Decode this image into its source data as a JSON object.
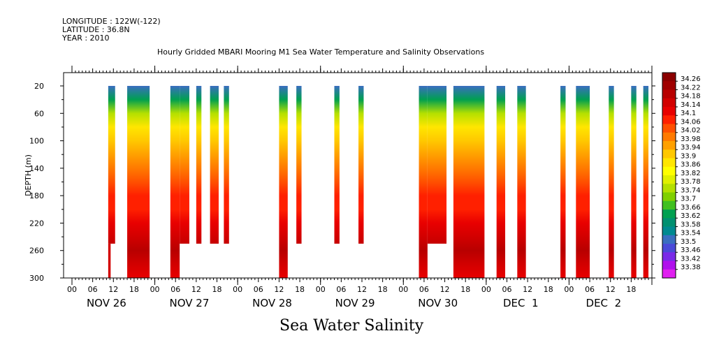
{
  "header": {
    "longitude": "LONGITUDE : 122W(-122)",
    "latitude": "LATITUDE : 36.8N",
    "year": "YEAR : 2010"
  },
  "title": "Hourly Gridded MBARI Mooring M1 Sea Water Temperature and Salinity Observations",
  "bottom_title": "Sea Water Salinity",
  "chart_data": {
    "type": "heatmap",
    "title": "Hourly Gridded MBARI Mooring M1 Sea Water Temperature and Salinity Observations",
    "variable": "Sea Water Salinity",
    "ylabel": "DEPTH (m)",
    "ylim": [
      300,
      0
    ],
    "yticks": [
      20,
      60,
      100,
      140,
      180,
      220,
      260,
      300
    ],
    "xlim_hours": [
      0,
      168
    ],
    "x_start": "NOV 26 2010 00:00",
    "hour_tick_labels": [
      "00",
      "06",
      "12",
      "18",
      "00",
      "06",
      "12",
      "18",
      "00",
      "06",
      "12",
      "18",
      "00",
      "06",
      "12",
      "18",
      "00",
      "06",
      "12",
      "18",
      "00",
      "06",
      "12",
      "18",
      "00",
      "06",
      "12",
      "18"
    ],
    "day_labels": [
      "NOV 26",
      "NOV 27",
      "NOV 28",
      "NOV 29",
      "NOV 30",
      "DEC  1",
      "DEC  2"
    ],
    "colorbar": {
      "levels": [
        "34.26",
        "34.22",
        "34.18",
        "34.14",
        "34.1",
        "34.06",
        "34.02",
        "33.98",
        "33.94",
        "33.9",
        "33.86",
        "33.82",
        "33.78",
        "33.74",
        "33.7",
        "33.66",
        "33.62",
        "33.58",
        "33.54",
        "33.5",
        "33.46",
        "33.42",
        "33.38"
      ],
      "colors": [
        "#8b0000",
        "#a00000",
        "#b80000",
        "#d20000",
        "#e80000",
        "#ff2000",
        "#ff5000",
        "#ff7a00",
        "#ffa000",
        "#ffc800",
        "#ffe600",
        "#ffff00",
        "#e0f000",
        "#b4e000",
        "#80d000",
        "#40c020",
        "#00a050",
        "#009070",
        "#008a90",
        "#3a6ec0",
        "#4a4ad8",
        "#7a2ae8",
        "#b010ec",
        "#e020f0"
      ]
    },
    "profile": [
      {
        "depth": 20,
        "value": 33.55
      },
      {
        "depth": 40,
        "value": 33.66
      },
      {
        "depth": 60,
        "value": 33.78
      },
      {
        "depth": 80,
        "value": 33.88
      },
      {
        "depth": 100,
        "value": 33.94
      },
      {
        "depth": 120,
        "value": 33.99
      },
      {
        "depth": 140,
        "value": 34.02
      },
      {
        "depth": 160,
        "value": 34.05
      },
      {
        "depth": 180,
        "value": 34.07
      },
      {
        "depth": 200,
        "value": 34.09
      },
      {
        "depth": 220,
        "value": 34.13
      },
      {
        "depth": 240,
        "value": 34.18
      },
      {
        "depth": 260,
        "value": 34.22
      },
      {
        "depth": 280,
        "value": 34.15
      },
      {
        "depth": 300,
        "value": 34.13
      }
    ],
    "segments": [
      {
        "start_hour": 10.5,
        "end_hour": 12.5,
        "max_depth": 250,
        "deep_extension": true
      },
      {
        "start_hour": 16,
        "end_hour": 22.5,
        "max_depth": 300
      },
      {
        "start_hour": 28.5,
        "end_hour": 31.2,
        "max_depth": 300
      },
      {
        "start_hour": 31.2,
        "end_hour": 34,
        "max_depth": 250
      },
      {
        "start_hour": 36,
        "end_hour": 37.5,
        "max_depth": 250
      },
      {
        "start_hour": 40,
        "end_hour": 42.5,
        "max_depth": 250
      },
      {
        "start_hour": 44,
        "end_hour": 45.5,
        "max_depth": 250
      },
      {
        "start_hour": 60,
        "end_hour": 62.5,
        "max_depth": 300
      },
      {
        "start_hour": 65,
        "end_hour": 66.5,
        "max_depth": 250
      },
      {
        "start_hour": 76,
        "end_hour": 77.5,
        "max_depth": 250
      },
      {
        "start_hour": 83,
        "end_hour": 84.5,
        "max_depth": 250
      },
      {
        "start_hour": 100.5,
        "end_hour": 103,
        "max_depth": 300
      },
      {
        "start_hour": 103,
        "end_hour": 108.5,
        "max_depth": 250
      },
      {
        "start_hour": 110.5,
        "end_hour": 119.5,
        "max_depth": 300
      },
      {
        "start_hour": 123,
        "end_hour": 125.5,
        "max_depth": 300
      },
      {
        "start_hour": 129,
        "end_hour": 131.5,
        "max_depth": 300
      },
      {
        "start_hour": 141.5,
        "end_hour": 143,
        "max_depth": 300
      },
      {
        "start_hour": 146,
        "end_hour": 150,
        "max_depth": 300
      },
      {
        "start_hour": 155.5,
        "end_hour": 157,
        "max_depth": 300
      },
      {
        "start_hour": 162,
        "end_hour": 163.5,
        "max_depth": 300
      },
      {
        "start_hour": 165.5,
        "end_hour": 167,
        "max_depth": 300
      }
    ]
  }
}
